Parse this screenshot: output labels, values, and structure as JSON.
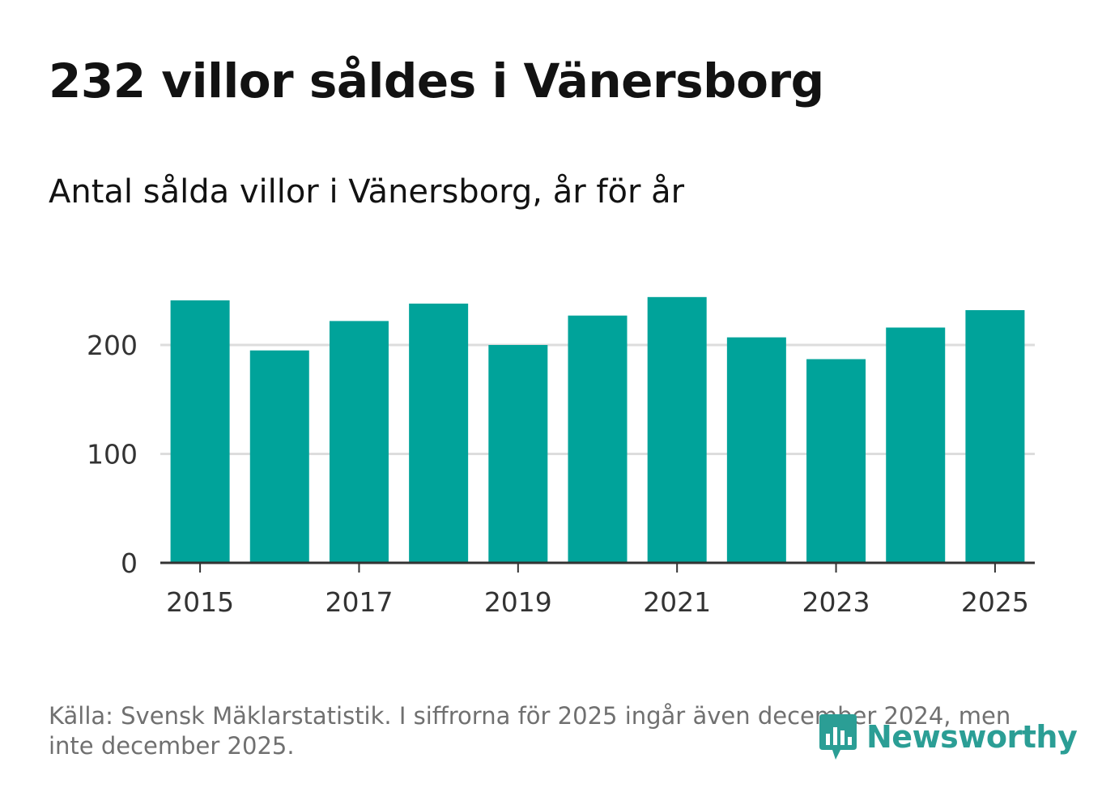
{
  "header": {
    "title": "232 villor såldes i Vänersborg",
    "subtitle": "Antal sålda villor i Vänersborg, år för år"
  },
  "chart_data": {
    "type": "bar",
    "title": "232 villor såldes i Vänersborg",
    "subtitle": "Antal sålda villor i Vänersborg, år för år",
    "categories": [
      "2015",
      "2016",
      "2017",
      "2018",
      "2019",
      "2020",
      "2021",
      "2022",
      "2023",
      "2024",
      "2025"
    ],
    "values": [
      241,
      195,
      222,
      238,
      200,
      227,
      244,
      207,
      187,
      216,
      232
    ],
    "x_tick_labels": [
      "2015",
      "2017",
      "2019",
      "2021",
      "2023",
      "2025"
    ],
    "y_ticks": [
      0,
      100,
      200
    ],
    "ylim": [
      0,
      250
    ],
    "xlabel": "",
    "ylabel": "",
    "grid": true,
    "bar_color": "#00a39a"
  },
  "footer": {
    "source": "Källa: Svensk Mäklarstatistik. I siffrorna för 2025 ingår även december 2024, men inte december 2025.",
    "logo_text": "Newsworthy",
    "logo_icon": "newsworthy-logo-icon"
  },
  "colors": {
    "bar": "#00a39a",
    "grid": "#dddddd",
    "axis": "#333333",
    "logo": "#2b9e95"
  }
}
